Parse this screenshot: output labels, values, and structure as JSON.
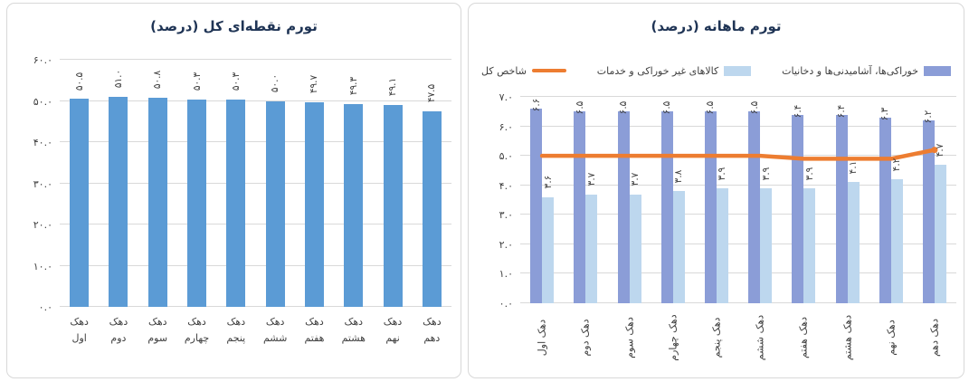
{
  "page": {
    "background": "#FFFFFF"
  },
  "styles": {
    "gridline_color": "#D9D9D9",
    "axis_text_color": "#404040",
    "title_color": "#1F3455",
    "panel_border_color": "#D8D8D8",
    "left_bar_color": "#5B9BD5",
    "food_bar_color": "#8B9DD7",
    "nonfood_bar_color": "#BDD7EE",
    "total_line_color": "#ED7D31"
  },
  "chart_data": [
    {
      "id": "point-to-point-inflation",
      "type": "bar",
      "title": "تورم نقطه‌ای کل (درصد)",
      "categories": [
        "دهک اول",
        "دهک دوم",
        "دهک سوم",
        "دهک چهارم",
        "دهک پنجم",
        "دهک ششم",
        "دهک هفتم",
        "دهک هشتم",
        "دهک نهم",
        "دهک دهم"
      ],
      "ylim": [
        0,
        60
      ],
      "ytick_values": [
        60,
        50,
        40,
        30,
        20,
        10,
        0
      ],
      "ytick_labels": [
        "۶۰.۰",
        "۵۰.۰",
        "۴۰.۰",
        "۳۰.۰",
        "۲۰.۰",
        "۱۰.۰",
        "۰.۰"
      ],
      "grid": true,
      "legend": false,
      "rotate_categories": false,
      "series": [
        {
          "key": "total",
          "name": "تورم نقطه‌ای کل",
          "type": "bar",
          "color": "#5B9BD5",
          "values": [
            50.5,
            51.0,
            50.8,
            50.3,
            50.3,
            50.0,
            49.7,
            49.3,
            49.1,
            47.5
          ],
          "value_labels": [
            "۵۰.۵",
            "۵۱.۰",
            "۵۰.۸",
            "۵۰.۳",
            "۵۰.۳",
            "۵۰.۰",
            "۴۹.۷",
            "۴۹.۳",
            "۴۹.۱",
            "۴۷.۵"
          ]
        }
      ]
    },
    {
      "id": "monthly-inflation",
      "type": "bar+line",
      "title": "تورم ماهانه (درصد)",
      "categories": [
        "دهک اول",
        "دهک دوم",
        "دهک سوم",
        "دهک چهارم",
        "دهک پنجم",
        "دهک ششم",
        "دهک هفتم",
        "دهک هشتم",
        "دهک نهم",
        "دهک دهم"
      ],
      "ylim": [
        0,
        7
      ],
      "ytick_values": [
        7,
        6,
        5,
        4,
        3,
        2,
        1,
        0
      ],
      "ytick_labels": [
        "۷.۰",
        "۶.۰",
        "۵.۰",
        "۴.۰",
        "۳.۰",
        "۲.۰",
        "۱.۰",
        "۰.۰"
      ],
      "grid": true,
      "legend": true,
      "legend_position": "top",
      "rotate_categories": true,
      "series": [
        {
          "key": "food",
          "name": "خوراکی‌ها، آشامیدنی‌ها و دخانیات",
          "type": "bar",
          "color": "#8B9DD7",
          "values": [
            6.6,
            6.5,
            6.5,
            6.5,
            6.5,
            6.5,
            6.4,
            6.4,
            6.3,
            6.2
          ],
          "value_labels": [
            "۶.۶",
            "۶.۵",
            "۶.۵",
            "۶.۵",
            "۶.۵",
            "۶.۵",
            "۶.۴",
            "۶.۴",
            "۶.۳",
            "۶.۲"
          ]
        },
        {
          "key": "nonfood",
          "name": "کالاهای غیر خوراکی و خدمات",
          "type": "bar",
          "color": "#BDD7EE",
          "values": [
            3.6,
            3.7,
            3.7,
            3.8,
            3.9,
            3.9,
            3.9,
            4.1,
            4.2,
            4.7
          ],
          "value_labels": [
            "۳.۶",
            "۳.۷",
            "۳.۷",
            "۳.۸",
            "۳.۹",
            "۳.۹",
            "۳.۹",
            "۴.۱",
            "۴.۲",
            "۴.۷"
          ]
        },
        {
          "key": "total-index",
          "name": "شاخص کل",
          "type": "line",
          "color": "#ED7D31",
          "values": [
            5.0,
            5.0,
            5.0,
            5.0,
            5.0,
            5.0,
            4.9,
            4.9,
            4.9,
            5.2
          ]
        }
      ]
    }
  ]
}
